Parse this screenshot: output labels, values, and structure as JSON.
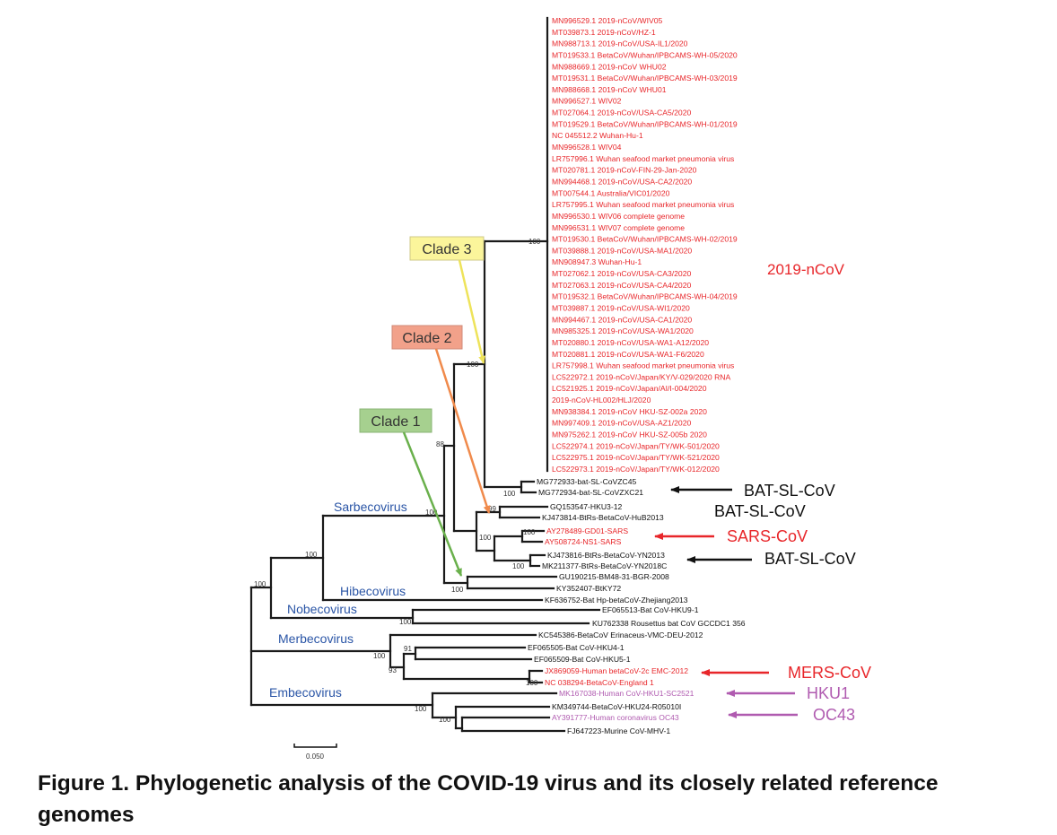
{
  "ncov_leaves": [
    "MN996529.1 2019-nCoV/WIV05",
    "MT039873.1 2019-nCoV/HZ-1",
    "MN988713.1 2019-nCoV/USA-IL1/2020",
    "MT019533.1 BetaCoV/Wuhan/IPBCAMS-WH-05/2020",
    "MN988669.1 2019-nCoV WHU02",
    "MT019531.1 BetaCoV/Wuhan/IPBCAMS-WH-03/2019",
    "MN988668.1 2019-nCoV WHU01",
    "MN996527.1 WIV02",
    "MT027064.1 2019-nCoV/USA-CA5/2020",
    "MT019529.1 BetaCoV/Wuhan/IPBCAMS-WH-01/2019",
    "NC 045512.2 Wuhan-Hu-1",
    "MN996528.1 WIV04",
    "LR757996.1 Wuhan seafood market pneumonia virus",
    "MT020781.1 2019-nCoV-FIN-29-Jan-2020",
    "MN994468.1 2019-nCoV/USA-CA2/2020",
    "MT007544.1 Australia/VIC01/2020",
    "LR757995.1 Wuhan seafood market pneumonia virus",
    "MN996530.1 WIV06 complete genome",
    "MN996531.1 WIV07 complete genome",
    "MT019530.1 BetaCoV/Wuhan/IPBCAMS-WH-02/2019",
    "MT039888.1 2019-nCoV/USA-MA1/2020",
    "MN908947.3 Wuhan-Hu-1",
    "MT027062.1 2019-nCoV/USA-CA3/2020",
    "MT027063.1 2019-nCoV/USA-CA4/2020",
    "MT019532.1 BetaCoV/Wuhan/IPBCAMS-WH-04/2019",
    "MT039887.1 2019-nCoV/USA-WI1/2020",
    "MN994467.1 2019-nCoV/USA-CA1/2020",
    "MN985325.1 2019-nCoV/USA-WA1/2020",
    "MT020880.1 2019-nCoV/USA-WA1-A12/2020",
    "MT020881.1 2019-nCoV/USA-WA1-F6/2020",
    "LR757998.1 Wuhan seafood market pneumonia virus",
    "LC522972.1 2019-nCoV/Japan/KY/V-029/2020 RNA",
    "LC521925.1 2019-nCoV/Japan/AI/I-004/2020",
    "2019-nCoV-HL002/HLJ/2020",
    "MN938384.1 2019-nCoV HKU-SZ-002a 2020",
    "MN997409.1 2019-nCoV/USA-AZ1/2020",
    "MN975262.1 2019-nCoV HKU-SZ-005b 2020",
    "LC522974.1 2019-nCoV/Japan/TY/WK-501/2020",
    "LC522975.1 2019-nCoV/Japan/TY/WK-521/2020",
    "LC522973.1 2019-nCoV/Japan/TY/WK-012/2020"
  ],
  "other_leaves": [
    {
      "label": "MG772933-bat-SL-CoVZC45",
      "color": "#111111"
    },
    {
      "label": "MG772934-bat-SL-CoVZXC21",
      "color": "#111111"
    },
    {
      "label": "GQ153547-HKU3-12",
      "color": "#111111"
    },
    {
      "label": "KJ473814-BtRs-BetaCoV-HuB2013",
      "color": "#111111"
    },
    {
      "label": "AY278489-GD01-SARS",
      "color": "#e8262a"
    },
    {
      "label": "AY508724-NS1-SARS",
      "color": "#e8262a"
    },
    {
      "label": "KJ473816-BtRs-BetaCoV-YN2013",
      "color": "#111111"
    },
    {
      "label": "MK211377-BtRs-BetaCoV-YN2018C",
      "color": "#111111"
    },
    {
      "label": "GU190215-BM48-31-BGR-2008",
      "color": "#111111"
    },
    {
      "label": "KY352407-BtKY72",
      "color": "#111111"
    },
    {
      "label": "KF636752-Bat Hp-betaCoV-Zhejiang2013",
      "color": "#111111"
    },
    {
      "label": "EF065513-Bat CoV-HKU9-1",
      "color": "#111111"
    },
    {
      "label": "KU762338 Rousettus bat CoV GCCDC1 356",
      "color": "#111111"
    },
    {
      "label": "KC545386-BetaCoV Erinaceus-VMC-DEU-2012",
      "color": "#111111"
    },
    {
      "label": "EF065505-Bat CoV-HKU4-1",
      "color": "#111111"
    },
    {
      "label": "EF065509-Bat CoV-HKU5-1",
      "color": "#111111"
    },
    {
      "label": "JX869059-Human betaCoV-2c EMC-2012",
      "color": "#e8262a"
    },
    {
      "label": "NC 038294-BetaCoV-England 1",
      "color": "#e8262a"
    },
    {
      "label": "MK167038-Human CoV-HKU1-SC2521",
      "color": "#b05bb0"
    },
    {
      "label": "KM349744-BetaCoV-HKU24-R05010I",
      "color": "#111111"
    },
    {
      "label": "AY391777-Human coronavirus OC43",
      "color": "#b05bb0"
    },
    {
      "label": "FJ647223-Murine CoV-MHV-1",
      "color": "#111111"
    }
  ],
  "bootstrap": {
    "ncov": "100",
    "clade3": "100",
    "clade2": "100",
    "clade1_node": "88",
    "zc": "100",
    "sarbeco": "100",
    "hku3": "99",
    "sars_pair": "100",
    "sars_node": "100",
    "yn": "100",
    "hibeco": "100",
    "sarb_hib": "100",
    "root": "100",
    "nobeco": "100",
    "merbeco": "100",
    "hku4": "91",
    "hku5": "93",
    "mers": "100",
    "embeco_top": "100",
    "oc43": "100"
  },
  "subgenera": {
    "sarbecovirus": "Sarbecovirus",
    "hibecovirus": "Hibecovirus",
    "nobecovirus": "Nobecovirus",
    "merbecovirus": "Merbecovirus",
    "embecovirus": "Embecovirus"
  },
  "clades": {
    "clade1": "Clade 1",
    "clade2": "Clade 2",
    "clade3": "Clade 3"
  },
  "groups": {
    "ncov": "2019-nCoV",
    "bat1": "BAT-SL-CoV",
    "bat2": "BAT-SL-CoV",
    "sars": "SARS-CoV",
    "bat3": "BAT-SL-CoV",
    "mers": "MERS-CoV",
    "hku1": "HKU1",
    "oc43": "OC43"
  },
  "scale_label": "0.050",
  "caption": "Figure 1. Phylogenetic analysis of the COVID-19 virus and its closely related reference genomes",
  "colors": {
    "ncov": "#e8262a",
    "sars": "#e8262a",
    "mers": "#e8262a",
    "human_embeco": "#b05bb0",
    "subgenus": "#2a55a6",
    "clade1_fill": "#a6d08f",
    "clade1_line": "#6ab04c",
    "clade2_fill": "#f2a18a",
    "clade2_line": "#f08a4b",
    "clade3_fill": "#fbf59b",
    "clade3_line": "#eee35a",
    "branch": "#1a1a1a"
  }
}
